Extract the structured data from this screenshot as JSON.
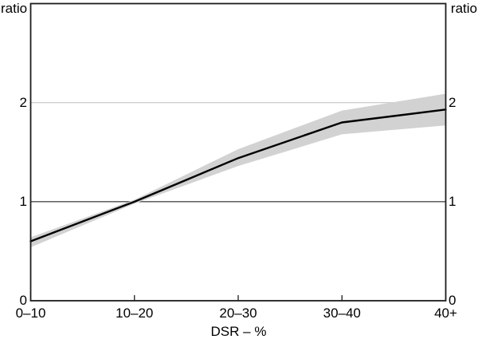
{
  "chart_data": {
    "type": "line",
    "title": "",
    "xlabel": "DSR – %",
    "ylabel_left": "ratio",
    "ylabel_right": "ratio",
    "ylim": [
      0,
      3
    ],
    "grid": "horizontal-at-labeled-ticks",
    "legend": "none",
    "categories": [
      "0–10",
      "10–20",
      "20–30",
      "30–40",
      "40+"
    ],
    "yticks": [
      {
        "value": 0,
        "label": "0"
      },
      {
        "value": 1,
        "label": "1"
      },
      {
        "value": 2,
        "label": "2"
      }
    ],
    "reference_lines": [
      {
        "value": 2,
        "color": "#c6c6c6",
        "width": 1.2
      },
      {
        "value": 1,
        "color": "#4d4d4d",
        "width": 1.4
      }
    ],
    "series": [
      {
        "name": "band",
        "type": "band",
        "color": "#d2d2d2",
        "upper": [
          0.64,
          1.02,
          1.53,
          1.92,
          2.09
        ],
        "lower": [
          0.54,
          0.98,
          1.36,
          1.68,
          1.77
        ]
      },
      {
        "name": "line",
        "type": "line",
        "color": "#000000",
        "width": 2.4,
        "values": [
          0.6,
          1.0,
          1.44,
          1.8,
          1.93
        ]
      }
    ],
    "colors": {
      "frame": "#1c1c1c",
      "text": "#000000",
      "background": "#ffffff"
    }
  }
}
